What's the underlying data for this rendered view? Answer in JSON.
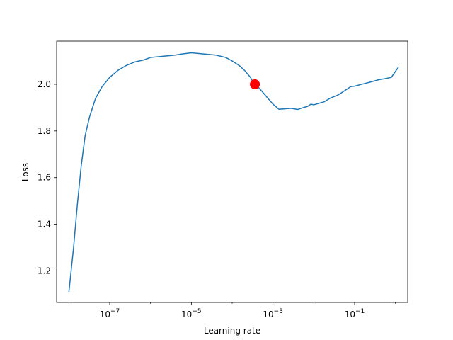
{
  "chart_data": {
    "type": "line",
    "title": "",
    "xlabel": "Learning rate",
    "ylabel": "Loss",
    "xscale": "log",
    "xlim": [
      5e-09,
      2.0
    ],
    "ylim": [
      1.065,
      2.185
    ],
    "grid": false,
    "x_ticks": [
      1e-07,
      1e-05,
      0.001,
      0.1
    ],
    "x_tick_labels": [
      {
        "base": "10",
        "exp": "−7"
      },
      {
        "base": "10",
        "exp": "−5"
      },
      {
        "base": "10",
        "exp": "−3"
      },
      {
        "base": "10",
        "exp": "−1"
      }
    ],
    "y_ticks": [
      1.2,
      1.4,
      1.6,
      1.8,
      2.0
    ],
    "y_tick_labels": [
      "1.2",
      "1.4",
      "1.6",
      "1.8",
      "2.0"
    ],
    "series": [
      {
        "color": "#1f77b4",
        "points": [
          [
            1e-08,
            1.11
          ],
          [
            1.3e-08,
            1.3
          ],
          [
            1.6e-08,
            1.48
          ],
          [
            2e-08,
            1.65
          ],
          [
            2.5e-08,
            1.78
          ],
          [
            3.2e-08,
            1.86
          ],
          [
            4.5e-08,
            1.94
          ],
          [
            6.5e-08,
            1.99
          ],
          [
            1e-07,
            2.03
          ],
          [
            1.6e-07,
            2.06
          ],
          [
            2.5e-07,
            2.08
          ],
          [
            4e-07,
            2.095
          ],
          [
            7e-07,
            2.105
          ],
          [
            1e-06,
            2.115
          ],
          [
            2e-06,
            2.12
          ],
          [
            4e-06,
            2.125
          ],
          [
            6e-06,
            2.13
          ],
          [
            1e-05,
            2.135
          ],
          [
            2e-05,
            2.13
          ],
          [
            4e-05,
            2.125
          ],
          [
            7e-05,
            2.115
          ],
          [
            0.0001,
            2.1
          ],
          [
            0.00015,
            2.08
          ],
          [
            0.0002,
            2.06
          ],
          [
            0.00028,
            2.03
          ],
          [
            0.00035,
            2.0
          ],
          [
            0.00045,
            1.985
          ],
          [
            0.0006,
            1.96
          ],
          [
            0.00075,
            1.94
          ],
          [
            0.001,
            1.915
          ],
          [
            0.0014,
            1.893
          ],
          [
            0.002,
            1.895
          ],
          [
            0.0028,
            1.897
          ],
          [
            0.004,
            1.892
          ],
          [
            0.0055,
            1.9
          ],
          [
            0.007,
            1.905
          ],
          [
            0.0085,
            1.915
          ],
          [
            0.01,
            1.912
          ],
          [
            0.013,
            1.918
          ],
          [
            0.018,
            1.925
          ],
          [
            0.025,
            1.94
          ],
          [
            0.04,
            1.955
          ],
          [
            0.06,
            1.975
          ],
          [
            0.08,
            1.99
          ],
          [
            0.1,
            1.992
          ],
          [
            0.15,
            2.0
          ],
          [
            0.25,
            2.01
          ],
          [
            0.4,
            2.02
          ],
          [
            0.6,
            2.025
          ],
          [
            0.8,
            2.03
          ],
          [
            1.0,
            2.055
          ],
          [
            1.2,
            2.075
          ]
        ]
      }
    ],
    "marker": {
      "x": 0.00036,
      "y": 2.0,
      "color": "#ff0000"
    }
  }
}
